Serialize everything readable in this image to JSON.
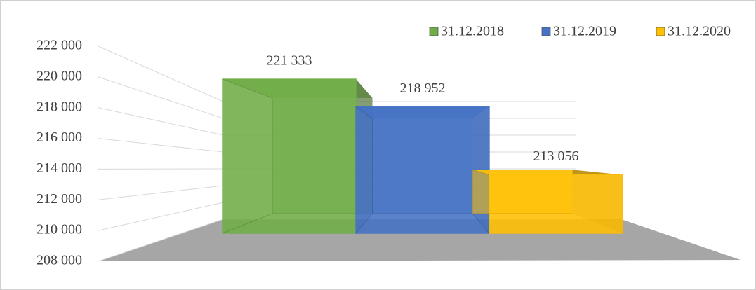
{
  "chart_data": {
    "type": "bar3d",
    "categories": [
      null
    ],
    "series": [
      {
        "name": "31.12.2018",
        "color": "#70ad47",
        "values": [
          221333
        ],
        "value_labels": [
          "221 333"
        ]
      },
      {
        "name": "31.12.2019",
        "color": "#4472c4",
        "values": [
          218952
        ],
        "value_labels": [
          "218 952"
        ]
      },
      {
        "name": "31.12.2020",
        "color": "#ffc000",
        "values": [
          213056
        ],
        "value_labels": [
          "213 056"
        ]
      }
    ],
    "ylim": [
      208000,
      222000
    ],
    "yticks": [
      {
        "value": 208000,
        "label": "208 000"
      },
      {
        "value": 210000,
        "label": "210 000"
      },
      {
        "value": 212000,
        "label": "212 000"
      },
      {
        "value": 214000,
        "label": "214 000"
      },
      {
        "value": 216000,
        "label": "216 000"
      },
      {
        "value": 218000,
        "label": "218 000"
      },
      {
        "value": 220000,
        "label": "220 000"
      },
      {
        "value": 222000,
        "label": "222 000"
      }
    ],
    "grid": true,
    "legend": "top-right"
  }
}
